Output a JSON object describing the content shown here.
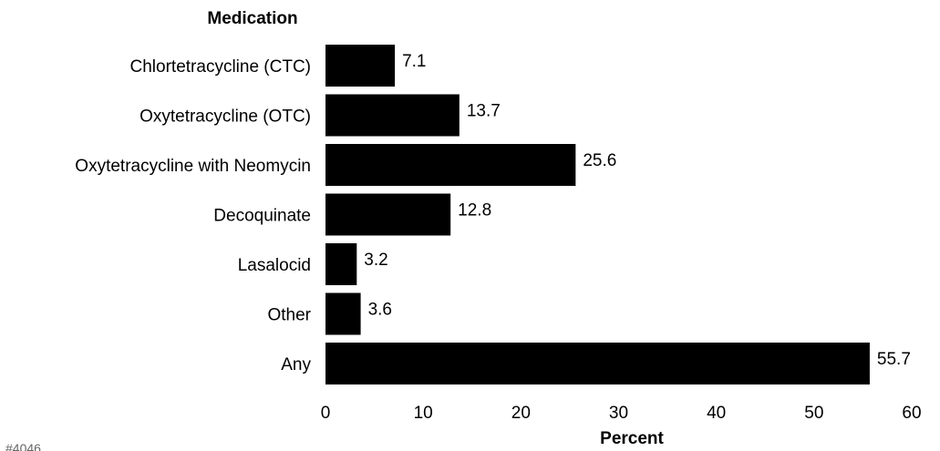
{
  "chart_data": {
    "type": "bar",
    "orientation": "horizontal",
    "ylabel": "Medication",
    "xlabel": "Percent",
    "categories": [
      "Chlortetracycline (CTC)",
      "Oxytetracycline (OTC)",
      "Oxytetracycline with Neomycin",
      "Decoquinate",
      "Lasalocid",
      "Other",
      "Any"
    ],
    "values": [
      7.1,
      13.7,
      25.6,
      12.8,
      3.2,
      3.6,
      55.7
    ],
    "value_labels": [
      "7.1",
      "13.7",
      "25.6",
      "12.8",
      "3.2",
      "3.6",
      "55.7"
    ],
    "xlim": [
      0,
      60
    ],
    "xticks": [
      0,
      10,
      20,
      30,
      40,
      50,
      60
    ],
    "grid": false,
    "bar_color": "#000000",
    "footnote": "#4046"
  }
}
